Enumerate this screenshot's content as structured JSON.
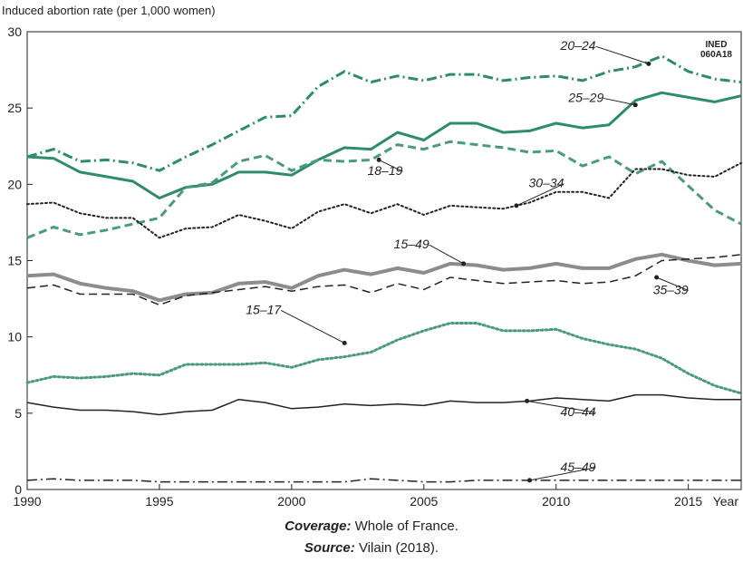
{
  "chart_data": {
    "type": "line",
    "ylabel": "Induced abortion rate (per 1,000 women)",
    "xlabel": "Year",
    "xlim": [
      1990,
      2017
    ],
    "ylim": [
      0,
      30
    ],
    "x_ticks": [
      1990,
      1995,
      2000,
      2005,
      2010,
      2015
    ],
    "y_ticks": [
      0,
      5,
      10,
      15,
      20,
      25,
      30
    ],
    "badge": [
      "INED",
      "060A18"
    ],
    "x": [
      1990,
      1991,
      1992,
      1993,
      1994,
      1995,
      1996,
      1997,
      1998,
      1999,
      2000,
      2001,
      2002,
      2003,
      2004,
      2005,
      2006,
      2007,
      2008,
      2009,
      2010,
      2011,
      2012,
      2013,
      2014,
      2015,
      2016,
      2017
    ],
    "series": [
      {
        "name": "20–24",
        "color": "#2e8b6e",
        "style": "dashdot",
        "width": 3,
        "values": [
          21.8,
          22.3,
          21.5,
          21.6,
          21.4,
          20.9,
          21.8,
          22.6,
          23.5,
          24.4,
          24.5,
          26.4,
          27.4,
          26.7,
          27.1,
          26.8,
          27.2,
          27.2,
          26.8,
          27.0,
          27.1,
          26.8,
          27.4,
          27.7,
          28.4,
          27.4,
          26.9,
          26.7
        ]
      },
      {
        "name": "25–29",
        "color": "#2e8b6e",
        "style": "solid",
        "width": 3,
        "values": [
          21.8,
          21.7,
          20.8,
          20.5,
          20.2,
          19.1,
          19.8,
          20.0,
          20.8,
          20.8,
          20.6,
          21.6,
          22.4,
          22.3,
          23.4,
          22.9,
          24.0,
          24.0,
          23.4,
          23.5,
          24.0,
          23.7,
          23.9,
          25.5,
          26.0,
          25.7,
          25.4,
          25.8
        ]
      },
      {
        "name": "18–19",
        "color": "#4a9a7e",
        "style": "dashed",
        "width": 3,
        "values": [
          16.5,
          17.2,
          16.7,
          17.0,
          17.4,
          17.8,
          19.8,
          20.1,
          21.5,
          21.9,
          20.9,
          21.6,
          21.5,
          21.6,
          22.6,
          22.3,
          22.8,
          22.6,
          22.4,
          22.1,
          22.2,
          21.2,
          21.8,
          20.7,
          21.5,
          19.9,
          18.3,
          17.4
        ]
      },
      {
        "name": "30–34",
        "color": "#222222",
        "style": "dotted",
        "width": 2,
        "values": [
          18.7,
          18.8,
          18.1,
          17.8,
          17.8,
          16.5,
          17.1,
          17.2,
          18.0,
          17.6,
          17.1,
          18.2,
          18.7,
          18.1,
          18.7,
          18.0,
          18.6,
          18.5,
          18.4,
          18.8,
          19.5,
          19.5,
          19.1,
          21.0,
          21.0,
          20.6,
          20.5,
          21.4
        ]
      },
      {
        "name": "15–49",
        "color": "#8c8c8c",
        "style": "solid",
        "width": 4,
        "values": [
          14.0,
          14.1,
          13.5,
          13.2,
          13.0,
          12.4,
          12.8,
          12.9,
          13.5,
          13.6,
          13.2,
          14.0,
          14.4,
          14.1,
          14.5,
          14.2,
          14.8,
          14.7,
          14.4,
          14.5,
          14.8,
          14.5,
          14.5,
          15.1,
          15.4,
          15.0,
          14.7,
          14.8
        ]
      },
      {
        "name": "35–39",
        "color": "#222222",
        "style": "dashed",
        "width": 1.5,
        "values": [
          13.2,
          13.4,
          12.8,
          12.8,
          12.8,
          12.1,
          12.7,
          12.9,
          13.1,
          13.3,
          13.0,
          13.3,
          13.4,
          12.9,
          13.5,
          13.1,
          13.9,
          13.7,
          13.5,
          13.6,
          13.7,
          13.5,
          13.6,
          14.0,
          15.0,
          15.1,
          15.2,
          15.4
        ]
      },
      {
        "name": "15–17",
        "color": "#4a9a7e",
        "style": "dotted",
        "width": 3,
        "values": [
          7.0,
          7.4,
          7.3,
          7.4,
          7.6,
          7.5,
          8.2,
          8.2,
          8.2,
          8.3,
          8.0,
          8.5,
          8.7,
          9.0,
          9.8,
          10.4,
          10.9,
          10.9,
          10.4,
          10.4,
          10.5,
          9.9,
          9.5,
          9.2,
          8.6,
          7.6,
          6.8,
          6.3
        ]
      },
      {
        "name": "40–44",
        "color": "#222222",
        "style": "solid",
        "width": 1.5,
        "values": [
          5.7,
          5.4,
          5.2,
          5.2,
          5.1,
          4.9,
          5.1,
          5.2,
          5.9,
          5.7,
          5.3,
          5.4,
          5.6,
          5.5,
          5.6,
          5.5,
          5.8,
          5.7,
          5.7,
          5.8,
          6.0,
          5.9,
          5.8,
          6.2,
          6.2,
          6.0,
          5.9,
          5.9
        ]
      },
      {
        "name": "45–49",
        "color": "#222222",
        "style": "dashdot",
        "width": 1.5,
        "values": [
          0.6,
          0.7,
          0.6,
          0.6,
          0.6,
          0.5,
          0.5,
          0.5,
          0.5,
          0.5,
          0.5,
          0.5,
          0.5,
          0.7,
          0.6,
          0.5,
          0.5,
          0.6,
          0.6,
          0.6,
          0.6,
          0.6,
          0.6,
          0.6,
          0.6,
          0.6,
          0.6,
          0.6
        ]
      }
    ]
  },
  "footer": {
    "coverage_label": "Coverage:",
    "coverage_text": " Whole of France.",
    "source_label": "Source:",
    "source_text": " Vilain (2018)."
  }
}
